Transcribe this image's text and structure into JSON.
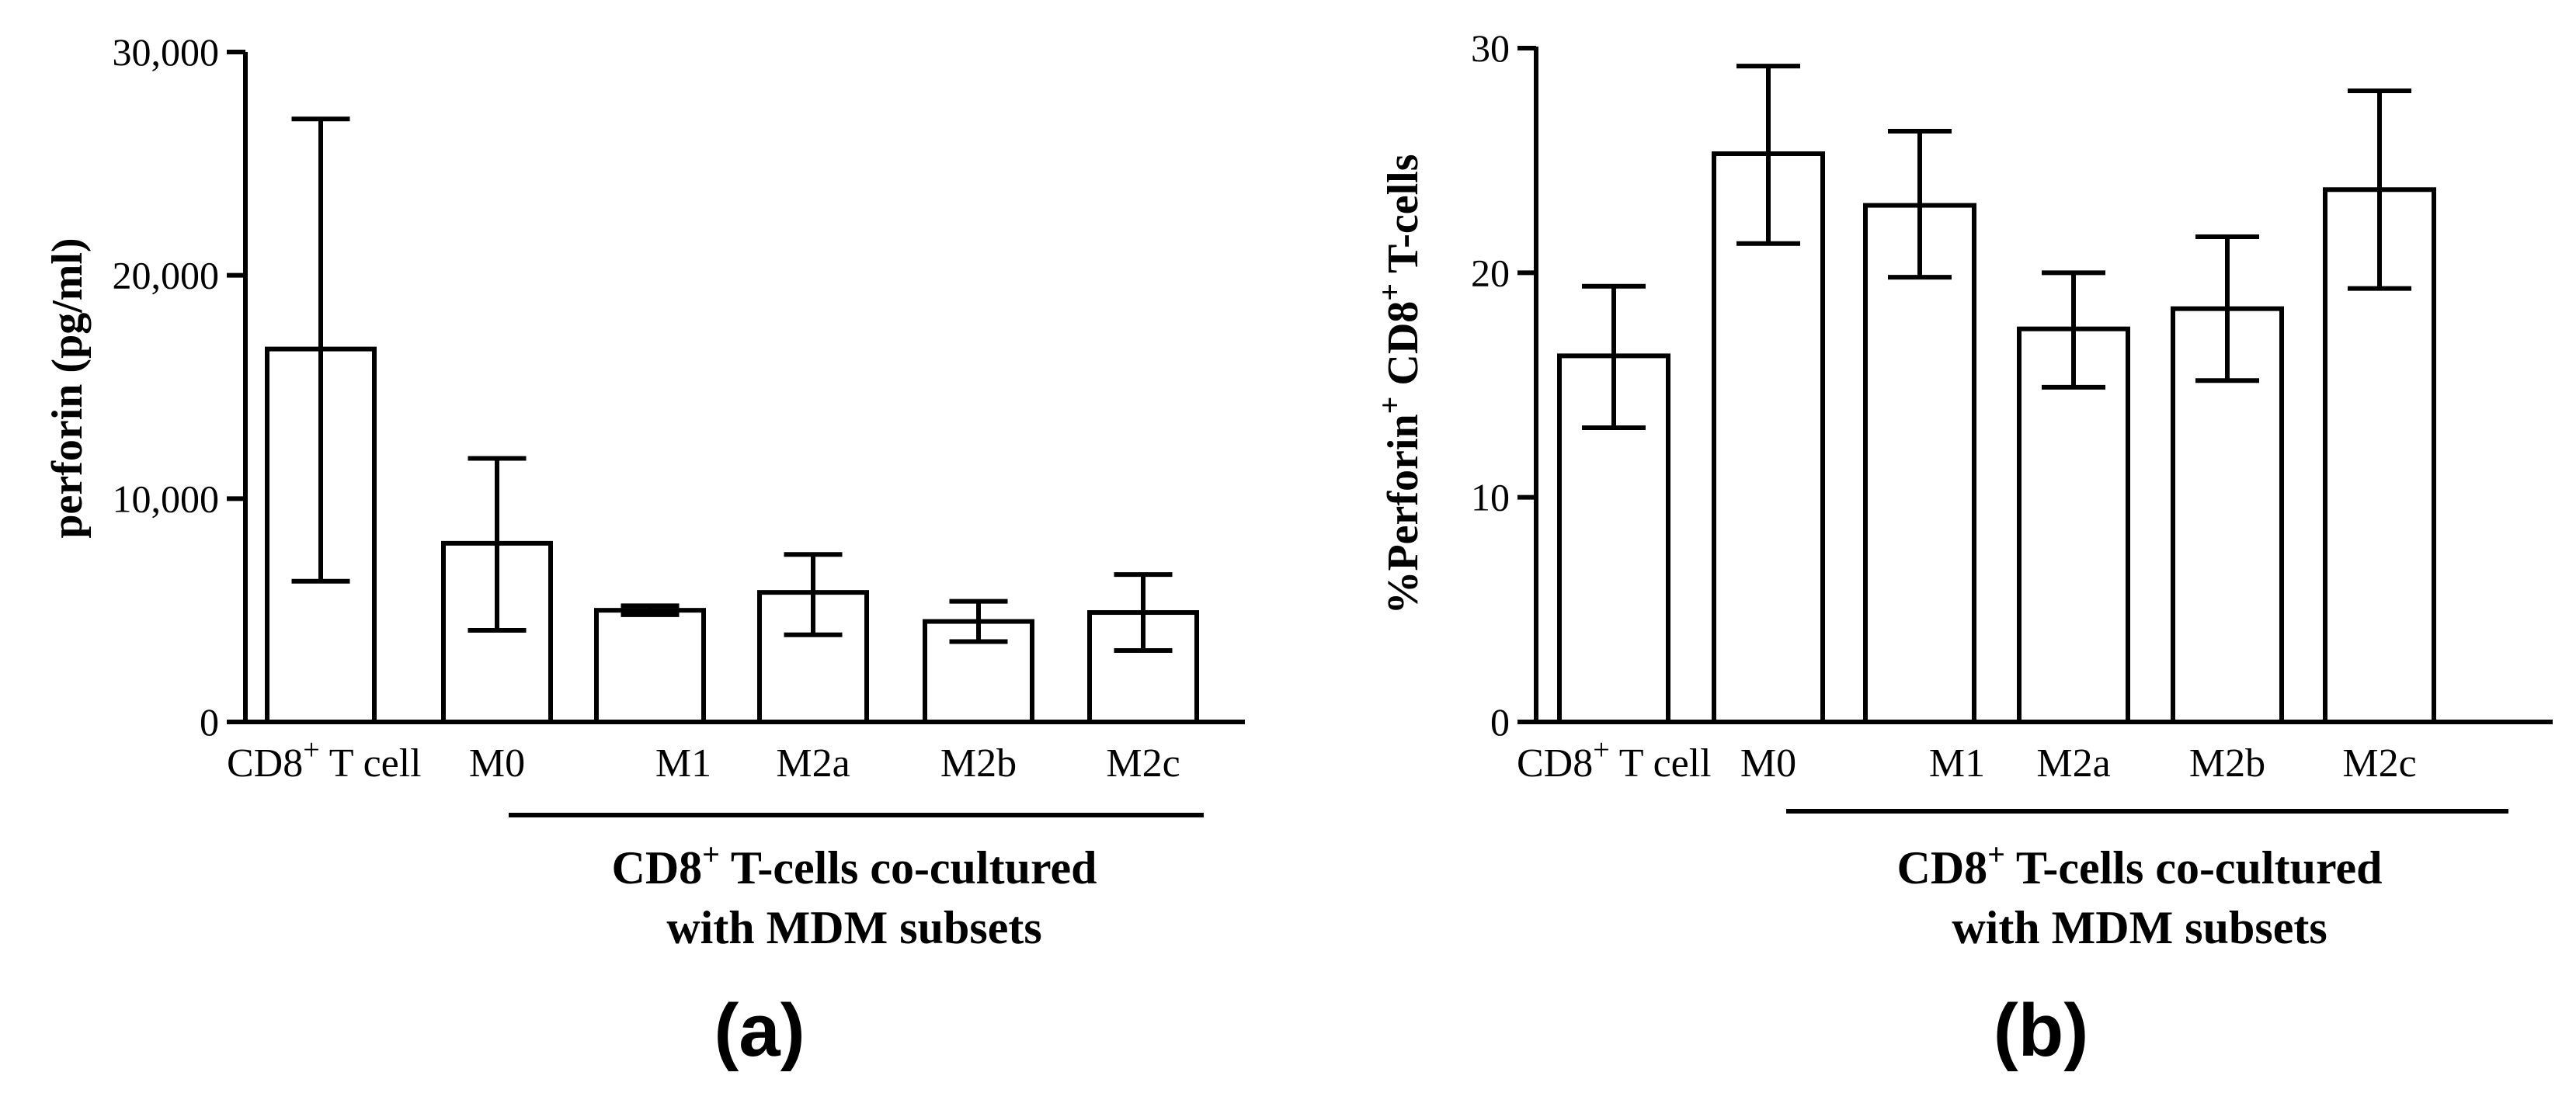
{
  "chart_data": [
    {
      "panel": "(a)",
      "type": "bar",
      "categories": [
        {
          "main": "CD8",
          "sup": "+",
          "rest": " T cell"
        },
        {
          "main": "M0",
          "sup": "",
          "rest": ""
        },
        {
          "main": "M1",
          "sup": "",
          "rest": ""
        },
        {
          "main": "M2a",
          "sup": "",
          "rest": ""
        },
        {
          "main": "M2b",
          "sup": "",
          "rest": ""
        },
        {
          "main": "M2c",
          "sup": "",
          "rest": ""
        }
      ],
      "values": [
        16700,
        8000,
        5000,
        5800,
        4500,
        4900
      ],
      "err_low": [
        6300,
        4100,
        4800,
        3900,
        3600,
        3200
      ],
      "err_high": [
        27000,
        11800,
        5200,
        7500,
        5400,
        6600
      ],
      "yticks": [
        0,
        10000,
        20000,
        30000
      ],
      "ytick_labels": [
        "0",
        "10,000",
        "20,000",
        "30,000"
      ],
      "ylim": [
        0,
        30000
      ],
      "ylabel": "perforin (pg/ml)",
      "group_label": {
        "line1_main": "CD8",
        "line1_sup": "+",
        "line1_rest": " T-cells co-cultured",
        "line2": "with MDM subsets"
      }
    },
    {
      "panel": "(b)",
      "type": "bar",
      "categories": [
        {
          "main": "CD8",
          "sup": "+",
          "rest": " T cell"
        },
        {
          "main": "M0",
          "sup": "",
          "rest": ""
        },
        {
          "main": "M1",
          "sup": "",
          "rest": ""
        },
        {
          "main": "M2a",
          "sup": "",
          "rest": ""
        },
        {
          "main": "M2b",
          "sup": "",
          "rest": ""
        },
        {
          "main": "M2c",
          "sup": "",
          "rest": ""
        }
      ],
      "values": [
        16.3,
        25.3,
        23.0,
        17.5,
        18.4,
        23.7
      ],
      "err_low": [
        13.1,
        21.3,
        19.8,
        14.9,
        15.2,
        19.3
      ],
      "err_high": [
        19.4,
        29.2,
        26.3,
        20.0,
        21.6,
        28.1
      ],
      "yticks": [
        0,
        10,
        20,
        30
      ],
      "ytick_labels": [
        "0",
        "10",
        "20",
        "30"
      ],
      "ylim": [
        0,
        30
      ],
      "ylabel": {
        "p1": "%Perforin",
        "sup1": "+",
        "p2": " CD8",
        "sup2": "+",
        "p3": " T-cells"
      },
      "group_label": {
        "line1_main": "CD8",
        "line1_sup": "+",
        "line1_rest": " T-cells co-cultured",
        "line2": "with MDM subsets"
      }
    }
  ]
}
